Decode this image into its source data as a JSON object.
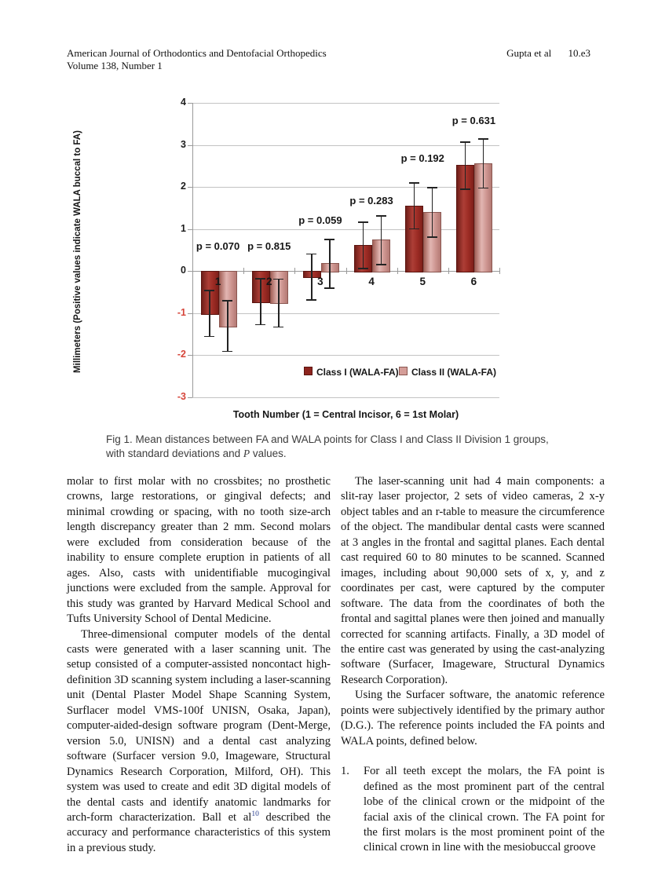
{
  "header": {
    "journal": "American Journal of Orthodontics and Dentofacial Orthopedics",
    "volume": "Volume 138, Number 1",
    "authors": "Gupta et al",
    "page_number": "10.e3"
  },
  "chart_data": {
    "type": "bar",
    "title": "",
    "categories": [
      "1",
      "2",
      "3",
      "4",
      "5",
      "6"
    ],
    "series": [
      {
        "name": "Class I (WALA-FA)",
        "values": [
          -1.0,
          -0.72,
          -0.13,
          0.62,
          1.56,
          2.52
        ],
        "sd": [
          0.55,
          0.55,
          0.55,
          0.55,
          0.55,
          0.56
        ]
      },
      {
        "name": "Class II (WALA-FA)",
        "values": [
          -1.3,
          -0.75,
          0.18,
          0.74,
          1.41,
          2.57
        ],
        "sd": [
          0.6,
          0.57,
          0.58,
          0.58,
          0.59,
          0.58
        ]
      }
    ],
    "p_values": [
      "p = 0.070",
      "p = 0.815",
      "p = 0.059",
      "p = 0.283",
      "p = 0.192",
      "p = 0.631"
    ],
    "p_label_y": [
      0.42,
      0.42,
      1.02,
      1.5,
      2.5,
      3.4
    ],
    "ylabel": "Millimeters (Positive values indicate WALA buccal to FA)",
    "xlabel": "Tooth Number (1 = Central Incisor, 6 = 1st Molar)",
    "ylim": [
      -3,
      4
    ],
    "yticks": [
      4,
      3,
      2,
      1,
      0,
      -1,
      -2,
      -3
    ],
    "grid": true,
    "legend_position": "bottom-inside",
    "colors": {
      "class1": "#8d241e",
      "class2": "#d49d98",
      "negative_ticks": "#d6453a",
      "gridline": "#c3c3c3"
    }
  },
  "figure": {
    "caption_label": "Fig 1.",
    "caption_body": " Mean distances between FA and WALA points for Class I and Class II Division 1 groups, with standard deviations and ",
    "caption_p": "P",
    "caption_end": " values."
  },
  "body": {
    "left_col": {
      "para1": "molar to first molar with no crossbites; no prosthetic crowns, large restorations, or gingival defects; and minimal crowding or spacing, with no tooth size-arch length discrepancy greater than 2 mm. Second molars were excluded from consideration because of the inability to ensure complete eruption in patients of all ages. Also, casts with unidentifiable mucogingival junctions were excluded from the sample. Approval for this study was granted by Harvard Medical School and Tufts University School of Dental Medicine.",
      "para2_pre": "Three-dimensional computer models of the dental casts were generated with a laser scanning unit. The setup consisted of a computer-assisted noncontact high-definition 3D scanning system including a laser-scanning unit (Dental Plaster Model Shape Scanning System, Surflacer model VMS-100f UNISN, Osaka, Japan), computer-aided-design software program (Dent-Merge, version 5.0, UNISN) and a dental cast analyzing software (Surfacer version 9.0, Imageware, Structural Dynamics Research Corporation, Milford, OH). This system was used to create and edit 3D digital models of the dental casts and identify anatomic landmarks for arch-form characterization. Ball et al",
      "para2_ref": "10",
      "para2_post": " described the accuracy and performance characteristics of this system in a previous study."
    },
    "right_col": {
      "para1": "The laser-scanning unit had 4 main components: a slit-ray laser projector, 2 sets of video cameras, 2 x-y object tables and an r-table to measure the circumference of the object. The mandibular dental casts were scanned at 3 angles in the frontal and sagittal planes. Each dental cast required 60 to 80 minutes to be scanned. Scanned images, including about 90,000 sets of x, y, and z coordinates per cast, were captured by the computer software. The data from the coordinates of both the frontal and sagittal planes were then joined and manually corrected for scanning artifacts. Finally, a 3D model of the entire cast was generated by using the cast-analyzing software (Surfacer, Imageware, Structural Dynamics Research Corporation).",
      "para2": "Using the Surfacer software, the anatomic reference points were subjectively identified by the primary author (D.G.). The reference points included the FA points and WALA points, defined below.",
      "list_item1_number": "1.",
      "list_item1_text": "For all teeth except the molars, the FA point is defined as the most prominent part of the central lobe of the clinical crown or the midpoint of the facial axis of the clinical crown. The FA point for the first molars is the most prominent point of the clinical crown in line with the mesiobuccal groove"
    }
  }
}
